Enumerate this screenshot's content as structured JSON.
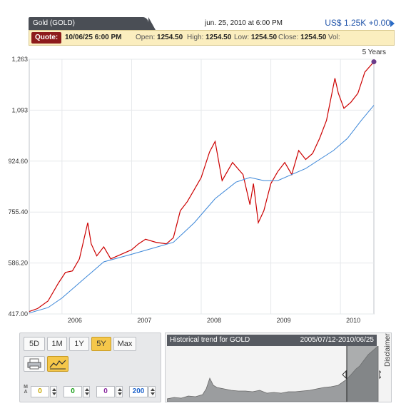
{
  "header": {
    "symbol_tab": "Gold (GOLD)",
    "timestamp": "jun. 25, 2010 at 6:00 PM",
    "price": "US$ 1.25K +0.00"
  },
  "quote": {
    "label": "Quote:",
    "date": "10/06/25 6:00 PM",
    "open_label": "Open:",
    "open": "1254.50",
    "high_label": "High:",
    "high": "1254.50",
    "low_label": "Low:",
    "low": "1254.50",
    "close_label": "Close:",
    "close": "1254.50",
    "vol_label": "Vol:"
  },
  "range_label": "5 Years",
  "chart_data": {
    "type": "line",
    "ylim": [
      417.0,
      1263.0
    ],
    "y_ticks": [
      "1,263",
      "1,093",
      "924.60",
      "755.40",
      "586.20",
      "417.00"
    ],
    "x_ticks": [
      "2006",
      "2007",
      "2008",
      "2009",
      "2010"
    ],
    "series": [
      {
        "color": "#cc0000",
        "x": [
          2005.53,
          2005.65,
          2005.8,
          2005.95,
          2006.05,
          2006.15,
          2006.25,
          2006.37,
          2006.42,
          2006.5,
          2006.6,
          2006.7,
          2006.85,
          2007.0,
          2007.1,
          2007.2,
          2007.35,
          2007.5,
          2007.6,
          2007.7,
          2007.8,
          2007.9,
          2008.0,
          2008.12,
          2008.2,
          2008.3,
          2008.45,
          2008.6,
          2008.7,
          2008.75,
          2008.82,
          2008.9,
          2009.0,
          2009.1,
          2009.2,
          2009.3,
          2009.4,
          2009.5,
          2009.6,
          2009.7,
          2009.8,
          2009.92,
          2009.97,
          2010.05,
          2010.15,
          2010.25,
          2010.35,
          2010.48
        ],
        "values": [
          425,
          435,
          460,
          520,
          555,
          560,
          600,
          720,
          650,
          610,
          640,
          600,
          615,
          630,
          650,
          665,
          655,
          650,
          670,
          760,
          790,
          830,
          870,
          955,
          990,
          860,
          920,
          880,
          780,
          850,
          720,
          760,
          850,
          890,
          920,
          880,
          960,
          930,
          950,
          1000,
          1060,
          1200,
          1150,
          1100,
          1120,
          1150,
          1220,
          1254.5
        ]
      },
      {
        "color": "#3b86d8",
        "x": [
          2005.53,
          2005.8,
          2006.0,
          2006.3,
          2006.6,
          2007.0,
          2007.3,
          2007.6,
          2007.9,
          2008.2,
          2008.5,
          2008.7,
          2008.9,
          2009.1,
          2009.3,
          2009.5,
          2009.7,
          2009.9,
          2010.1,
          2010.3,
          2010.48
        ],
        "values": [
          420,
          438,
          470,
          530,
          590,
          615,
          635,
          655,
          720,
          800,
          855,
          870,
          860,
          860,
          880,
          900,
          930,
          960,
          1000,
          1060,
          1110
        ]
      }
    ]
  },
  "controls": {
    "ranges": [
      "5D",
      "1M",
      "1Y",
      "5Y",
      "Max"
    ],
    "ma_label": "MA",
    "ma_values": [
      "0",
      "0",
      "0",
      "200"
    ],
    "ma_colors": [
      "#c8a800",
      "#1aa01a",
      "#8a2aa0",
      "#2266cc"
    ]
  },
  "historical": {
    "title": "Historical trend for GOLD",
    "range": "2005/07/12-2010/06/25"
  },
  "disclaimer": "Disclaimer"
}
